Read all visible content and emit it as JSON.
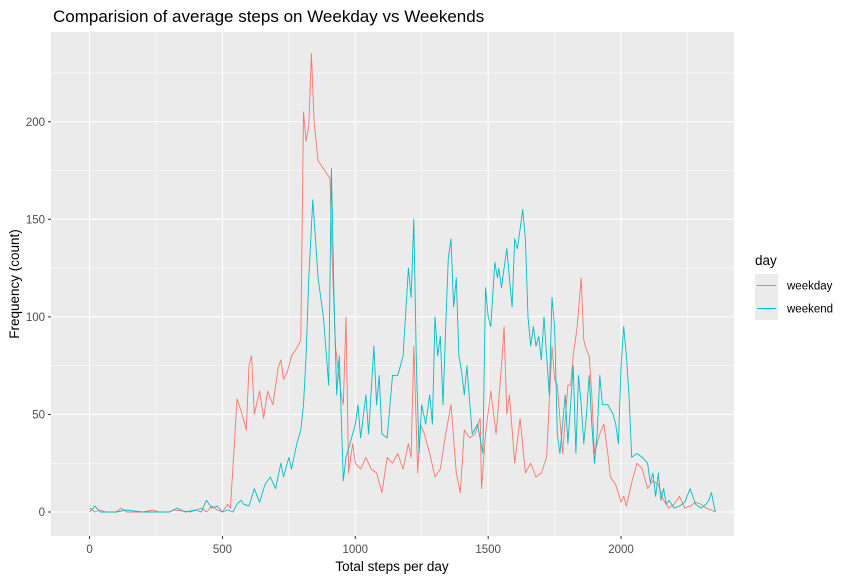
{
  "chart_data": {
    "type": "line",
    "title": "Comparision of average steps on Weekday vs Weekends",
    "xlabel": "Total steps per day",
    "ylabel": "Frequency (count)",
    "xlim": [
      -145,
      2425
    ],
    "ylim": [
      -12.3,
      246
    ],
    "x_ticks": [
      0,
      500,
      1000,
      1500,
      2000
    ],
    "y_ticks": [
      0,
      50,
      100,
      150,
      200
    ],
    "grid": true,
    "legend": {
      "title": "day",
      "position": "right"
    },
    "series": [
      {
        "name": "weekday",
        "color": "#F8766D",
        "points": [
          [
            0,
            2
          ],
          [
            20,
            0
          ],
          [
            40,
            1
          ],
          [
            60,
            0
          ],
          [
            100,
            0
          ],
          [
            120,
            2
          ],
          [
            140,
            0
          ],
          [
            200,
            0
          ],
          [
            240,
            1
          ],
          [
            260,
            0
          ],
          [
            300,
            0
          ],
          [
            320,
            1
          ],
          [
            380,
            0
          ],
          [
            420,
            2
          ],
          [
            440,
            0
          ],
          [
            460,
            3
          ],
          [
            480,
            1
          ],
          [
            500,
            0
          ],
          [
            520,
            4
          ],
          [
            530,
            2
          ],
          [
            545,
            35
          ],
          [
            555,
            58
          ],
          [
            570,
            52
          ],
          [
            590,
            42
          ],
          [
            600,
            75
          ],
          [
            610,
            80
          ],
          [
            620,
            50
          ],
          [
            640,
            62
          ],
          [
            655,
            48
          ],
          [
            670,
            62
          ],
          [
            690,
            55
          ],
          [
            710,
            74
          ],
          [
            720,
            78
          ],
          [
            730,
            68
          ],
          [
            745,
            72
          ],
          [
            760,
            80
          ],
          [
            780,
            84
          ],
          [
            795,
            88
          ],
          [
            805,
            205
          ],
          [
            815,
            190
          ],
          [
            825,
            198
          ],
          [
            835,
            235
          ],
          [
            845,
            200
          ],
          [
            860,
            180
          ],
          [
            880,
            176
          ],
          [
            905,
            171
          ],
          [
            912,
            135
          ],
          [
            925,
            85
          ],
          [
            945,
            62
          ],
          [
            955,
            55
          ],
          [
            965,
            100
          ],
          [
            975,
            20
          ],
          [
            990,
            35
          ],
          [
            1000,
            25
          ],
          [
            1020,
            22
          ],
          [
            1040,
            28
          ],
          [
            1060,
            22
          ],
          [
            1080,
            20
          ],
          [
            1100,
            10
          ],
          [
            1120,
            28
          ],
          [
            1140,
            25
          ],
          [
            1160,
            30
          ],
          [
            1180,
            22
          ],
          [
            1200,
            35
          ],
          [
            1210,
            28
          ],
          [
            1220,
            85
          ],
          [
            1235,
            20
          ],
          [
            1245,
            45
          ],
          [
            1260,
            40
          ],
          [
            1280,
            30
          ],
          [
            1300,
            18
          ],
          [
            1320,
            22
          ],
          [
            1340,
            40
          ],
          [
            1360,
            55
          ],
          [
            1380,
            20
          ],
          [
            1395,
            10
          ],
          [
            1410,
            42
          ],
          [
            1430,
            38
          ],
          [
            1450,
            40
          ],
          [
            1470,
            48
          ],
          [
            1475,
            12
          ],
          [
            1490,
            40
          ],
          [
            1510,
            62
          ],
          [
            1530,
            40
          ],
          [
            1550,
            75
          ],
          [
            1560,
            95
          ],
          [
            1570,
            50
          ],
          [
            1580,
            60
          ],
          [
            1600,
            25
          ],
          [
            1620,
            48
          ],
          [
            1640,
            20
          ],
          [
            1660,
            25
          ],
          [
            1680,
            18
          ],
          [
            1700,
            20
          ],
          [
            1720,
            28
          ],
          [
            1740,
            85
          ],
          [
            1750,
            68
          ],
          [
            1760,
            65
          ],
          [
            1780,
            30
          ],
          [
            1800,
            65
          ],
          [
            1810,
            65
          ],
          [
            1820,
            80
          ],
          [
            1835,
            95
          ],
          [
            1850,
            120
          ],
          [
            1860,
            88
          ],
          [
            1870,
            83
          ],
          [
            1880,
            80
          ],
          [
            1890,
            60
          ],
          [
            1900,
            30
          ],
          [
            1920,
            40
          ],
          [
            1935,
            45
          ],
          [
            1950,
            30
          ],
          [
            1960,
            18
          ],
          [
            1980,
            14
          ],
          [
            2000,
            5
          ],
          [
            2010,
            8
          ],
          [
            2020,
            3
          ],
          [
            2040,
            15
          ],
          [
            2060,
            25
          ],
          [
            2080,
            22
          ],
          [
            2100,
            12
          ],
          [
            2120,
            16
          ],
          [
            2140,
            14
          ],
          [
            2160,
            6
          ],
          [
            2180,
            2
          ],
          [
            2200,
            4
          ],
          [
            2220,
            8
          ],
          [
            2240,
            2
          ],
          [
            2260,
            3
          ],
          [
            2280,
            5
          ],
          [
            2300,
            4
          ],
          [
            2320,
            2
          ],
          [
            2340,
            1
          ],
          [
            2355,
            0
          ]
        ]
      },
      {
        "name": "weekend",
        "color": "#00BFC4",
        "points": [
          [
            0,
            0
          ],
          [
            20,
            3
          ],
          [
            40,
            0
          ],
          [
            100,
            0
          ],
          [
            140,
            1
          ],
          [
            200,
            0
          ],
          [
            300,
            0
          ],
          [
            330,
            2
          ],
          [
            360,
            0
          ],
          [
            400,
            1
          ],
          [
            420,
            0
          ],
          [
            440,
            6
          ],
          [
            460,
            2
          ],
          [
            480,
            3
          ],
          [
            500,
            0
          ],
          [
            520,
            1
          ],
          [
            540,
            0
          ],
          [
            555,
            4
          ],
          [
            570,
            6
          ],
          [
            580,
            4
          ],
          [
            600,
            3
          ],
          [
            620,
            12
          ],
          [
            640,
            5
          ],
          [
            660,
            14
          ],
          [
            680,
            18
          ],
          [
            700,
            12
          ],
          [
            720,
            25
          ],
          [
            730,
            18
          ],
          [
            750,
            28
          ],
          [
            760,
            22
          ],
          [
            780,
            35
          ],
          [
            795,
            42
          ],
          [
            805,
            55
          ],
          [
            815,
            80
          ],
          [
            825,
            120
          ],
          [
            840,
            160
          ],
          [
            860,
            120
          ],
          [
            880,
            100
          ],
          [
            900,
            65
          ],
          [
            910,
            176
          ],
          [
            920,
            110
          ],
          [
            930,
            60
          ],
          [
            940,
            80
          ],
          [
            955,
            16
          ],
          [
            965,
            28
          ],
          [
            980,
            35
          ],
          [
            1000,
            45
          ],
          [
            1010,
            55
          ],
          [
            1020,
            38
          ],
          [
            1040,
            60
          ],
          [
            1050,
            40
          ],
          [
            1070,
            85
          ],
          [
            1080,
            55
          ],
          [
            1090,
            70
          ],
          [
            1100,
            40
          ],
          [
            1120,
            38
          ],
          [
            1140,
            70
          ],
          [
            1160,
            70
          ],
          [
            1180,
            80
          ],
          [
            1200,
            125
          ],
          [
            1210,
            110
          ],
          [
            1220,
            150
          ],
          [
            1230,
            75
          ],
          [
            1240,
            30
          ],
          [
            1250,
            55
          ],
          [
            1265,
            45
          ],
          [
            1280,
            60
          ],
          [
            1290,
            45
          ],
          [
            1300,
            100
          ],
          [
            1310,
            80
          ],
          [
            1320,
            90
          ],
          [
            1330,
            55
          ],
          [
            1340,
            95
          ],
          [
            1350,
            130
          ],
          [
            1360,
            140
          ],
          [
            1370,
            105
          ],
          [
            1380,
            120
          ],
          [
            1390,
            80
          ],
          [
            1400,
            72
          ],
          [
            1410,
            60
          ],
          [
            1420,
            75
          ],
          [
            1440,
            40
          ],
          [
            1460,
            45
          ],
          [
            1480,
            30
          ],
          [
            1490,
            115
          ],
          [
            1500,
            100
          ],
          [
            1510,
            95
          ],
          [
            1525,
            128
          ],
          [
            1535,
            120
          ],
          [
            1540,
            125
          ],
          [
            1550,
            115
          ],
          [
            1560,
            125
          ],
          [
            1570,
            135
          ],
          [
            1580,
            120
          ],
          [
            1590,
            105
          ],
          [
            1600,
            140
          ],
          [
            1610,
            135
          ],
          [
            1620,
            145
          ],
          [
            1630,
            155
          ],
          [
            1640,
            140
          ],
          [
            1650,
            100
          ],
          [
            1660,
            85
          ],
          [
            1670,
            95
          ],
          [
            1680,
            85
          ],
          [
            1690,
            90
          ],
          [
            1700,
            78
          ],
          [
            1710,
            100
          ],
          [
            1720,
            80
          ],
          [
            1730,
            60
          ],
          [
            1740,
            110
          ],
          [
            1750,
            95
          ],
          [
            1760,
            40
          ],
          [
            1770,
            30
          ],
          [
            1780,
            45
          ],
          [
            1790,
            60
          ],
          [
            1800,
            35
          ],
          [
            1810,
            55
          ],
          [
            1820,
            75
          ],
          [
            1830,
            30
          ],
          [
            1840,
            70
          ],
          [
            1850,
            55
          ],
          [
            1860,
            35
          ],
          [
            1870,
            50
          ],
          [
            1880,
            70
          ],
          [
            1890,
            45
          ],
          [
            1900,
            25
          ],
          [
            1910,
            40
          ],
          [
            1920,
            70
          ],
          [
            1930,
            55
          ],
          [
            1950,
            55
          ],
          [
            1970,
            50
          ],
          [
            1980,
            45
          ],
          [
            1990,
            35
          ],
          [
            2000,
            75
          ],
          [
            2010,
            95
          ],
          [
            2020,
            80
          ],
          [
            2030,
            60
          ],
          [
            2040,
            28
          ],
          [
            2060,
            30
          ],
          [
            2080,
            28
          ],
          [
            2100,
            25
          ],
          [
            2110,
            15
          ],
          [
            2120,
            20
          ],
          [
            2130,
            8
          ],
          [
            2140,
            20
          ],
          [
            2150,
            6
          ],
          [
            2160,
            12
          ],
          [
            2170,
            4
          ],
          [
            2180,
            6
          ],
          [
            2200,
            2
          ],
          [
            2220,
            3
          ],
          [
            2240,
            5
          ],
          [
            2260,
            12
          ],
          [
            2270,
            8
          ],
          [
            2280,
            4
          ],
          [
            2300,
            2
          ],
          [
            2320,
            4
          ],
          [
            2330,
            6
          ],
          [
            2340,
            10
          ],
          [
            2350,
            3
          ],
          [
            2355,
            0
          ]
        ]
      }
    ]
  }
}
